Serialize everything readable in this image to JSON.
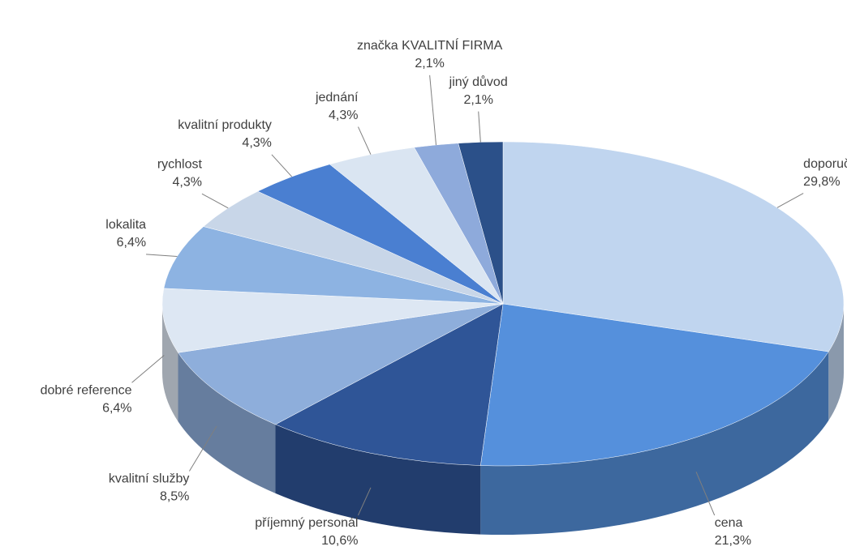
{
  "chart_data": {
    "type": "pie",
    "categories": [
      "doporučení",
      "cena",
      "příjemný personál",
      "kvalitní služby",
      "dobré reference",
      "lokalita",
      "rychlost",
      "kvalitní produkty",
      "jednání",
      "značka KVALITNÍ FIRMA",
      "jiný důvod"
    ],
    "values": [
      29.8,
      21.3,
      10.6,
      8.5,
      6.4,
      6.4,
      4.3,
      4.3,
      4.3,
      2.1,
      2.1
    ],
    "value_labels": [
      "29,8%",
      "21,3%",
      "10,6%",
      "8,5%",
      "6,4%",
      "6,4%",
      "4,3%",
      "4,3%",
      "4,3%",
      "2,1%",
      "2,1%"
    ],
    "colors": [
      "#c0d5ef",
      "#5590dc",
      "#2f5597",
      "#8eaedb",
      "#dde7f3",
      "#8db3e2",
      "#c8d6e8",
      "#4a7fd1",
      "#dae5f2",
      "#8eaadb",
      "#2b5089"
    ]
  }
}
